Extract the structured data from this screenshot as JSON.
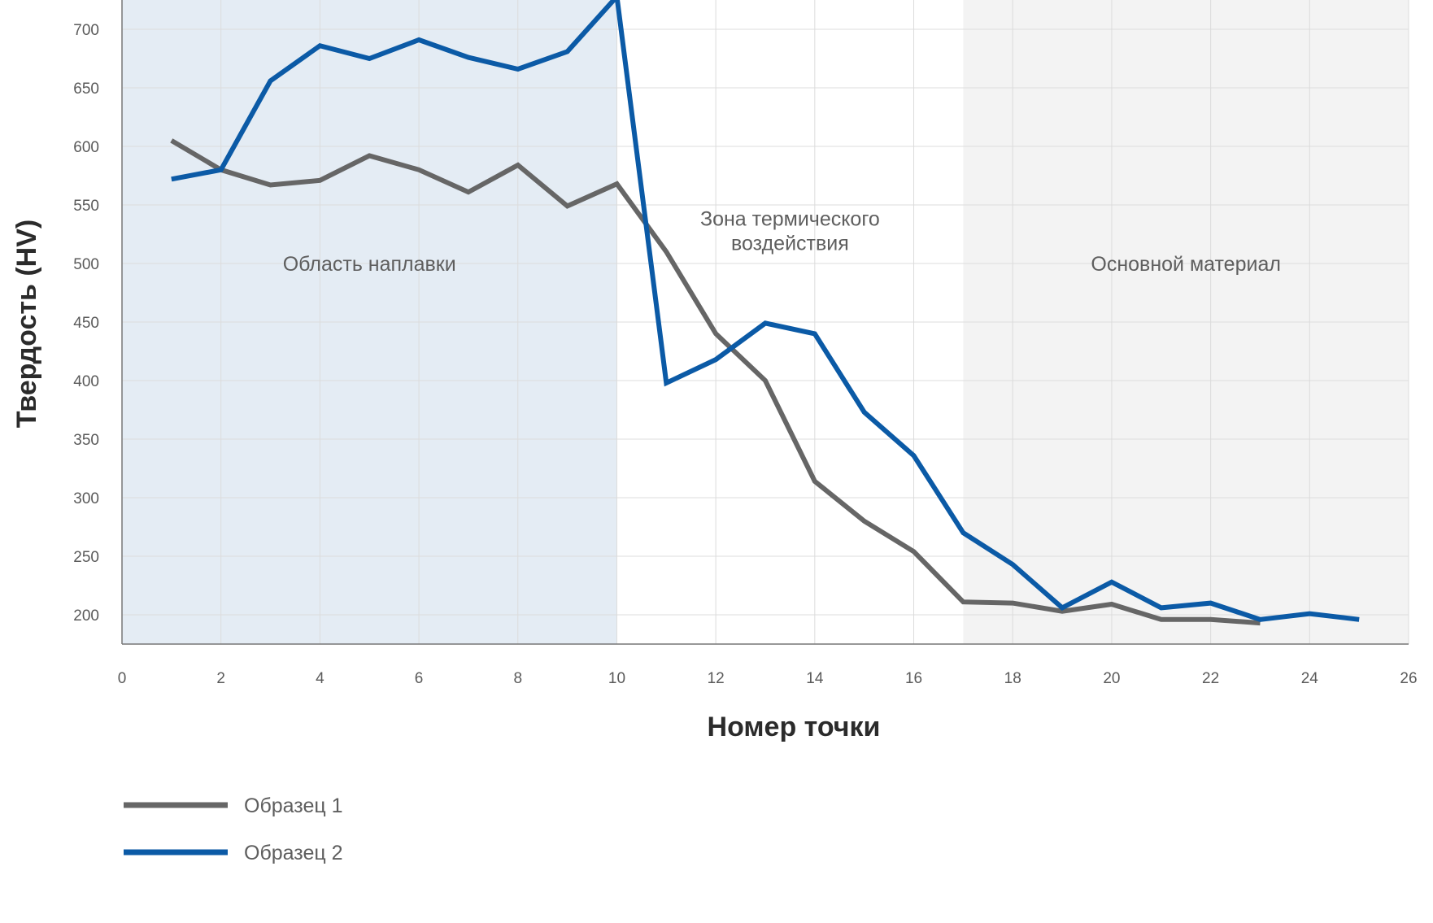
{
  "chart_data": {
    "type": "line",
    "title": "",
    "xlabel": "Номер точки",
    "ylabel": "Твердость (HV)",
    "xlim": [
      0,
      26
    ],
    "ylim": [
      175,
      725
    ],
    "x_ticks": [
      0,
      2,
      4,
      6,
      8,
      10,
      12,
      14,
      16,
      18,
      20,
      22,
      24,
      26
    ],
    "y_ticks": [
      200,
      250,
      300,
      350,
      400,
      450,
      500,
      550,
      600,
      650,
      700
    ],
    "grid": true,
    "legend_position": "bottom-left",
    "regions": [
      {
        "label": [
          "Область наплавки"
        ],
        "x_from": 0,
        "x_to": 10,
        "color": "#e4ecf4",
        "label_x": 5,
        "label_y": 500
      },
      {
        "label": [
          "Зона термического",
          "воздействия"
        ],
        "x_from": 10,
        "x_to": 17,
        "color": "#ffffff",
        "label_x": 13.5,
        "label_y": 528
      },
      {
        "label": [
          "Основной материал"
        ],
        "x_from": 17,
        "x_to": 26,
        "color": "#f3f3f3",
        "label_x": 21.5,
        "label_y": 500
      }
    ],
    "series": [
      {
        "name": "Образец 1",
        "color": "#666666",
        "x": [
          1,
          2,
          3,
          4,
          5,
          6,
          7,
          8,
          9,
          10,
          11,
          12,
          13,
          14,
          15,
          16,
          17,
          18,
          19,
          20,
          21,
          22,
          23
        ],
        "y": [
          605,
          580,
          567,
          571,
          592,
          580,
          561,
          584,
          549,
          568,
          510,
          440,
          400,
          314,
          280,
          254,
          211,
          210,
          203,
          209,
          196,
          196,
          193
        ]
      },
      {
        "name": "Образец 2",
        "color": "#0b5aa6",
        "x": [
          1,
          2,
          3,
          4,
          5,
          6,
          7,
          8,
          9,
          10,
          11,
          12,
          13,
          14,
          15,
          16,
          17,
          18,
          19,
          20,
          21,
          22,
          23,
          24,
          25
        ],
        "y": [
          572,
          580,
          656,
          686,
          675,
          691,
          676,
          666,
          681,
          728,
          398,
          418,
          449,
          440,
          373,
          336,
          270,
          243,
          206,
          228,
          206,
          210,
          196,
          201,
          196
        ]
      }
    ]
  }
}
